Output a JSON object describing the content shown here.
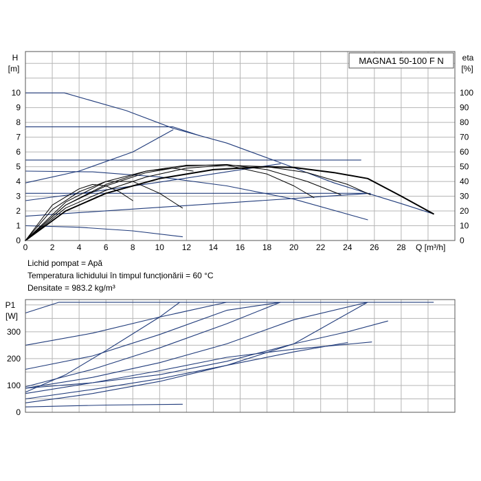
{
  "chart_data": [
    {
      "type": "line",
      "title": "MAGNA1 50-100 F N",
      "xlabel": "Q [m³/h]",
      "ylabel_left": [
        "H",
        "[m]"
      ],
      "ylabel_right": [
        "eta",
        "[%]"
      ],
      "xlim": [
        0,
        32
      ],
      "ylim": [
        0,
        12.8
      ],
      "y2lim": [
        0,
        128
      ],
      "xticks": [
        "0",
        "2",
        "4",
        "6",
        "8",
        "10",
        "12",
        "14",
        "16",
        "18",
        "20",
        "22",
        "24",
        "26",
        "28"
      ],
      "yticks": [
        "0",
        "1",
        "2",
        "3",
        "4",
        "5",
        "6",
        "7",
        "8",
        "9",
        "10"
      ],
      "y2ticks": [
        "0",
        "10",
        "20",
        "30",
        "40",
        "50",
        "60",
        "70",
        "80",
        "90",
        "100"
      ],
      "grid": true,
      "colors": {
        "pump": "#1f3a7a",
        "efficiency": "#000000",
        "grid": "#b5b5b5"
      },
      "series": [
        {
          "role": "pump",
          "points": [
            [
              0,
              10
            ],
            [
              2.9,
              10
            ],
            [
              7.5,
              8.8
            ],
            [
              11,
              7.6
            ],
            [
              15,
              6.6
            ],
            [
              19.5,
              5.1
            ],
            [
              23,
              3.9
            ],
            [
              25.5,
              3.2
            ],
            [
              28,
              2.5
            ],
            [
              30.4,
              1.8
            ]
          ]
        },
        {
          "role": "pump",
          "points": [
            [
              0,
              7.7
            ],
            [
              11,
              7.7
            ],
            [
              13,
              7.1
            ]
          ]
        },
        {
          "role": "pump",
          "points": [
            [
              0,
              5.45
            ],
            [
              25,
              5.45
            ]
          ]
        },
        {
          "role": "pump",
          "points": [
            [
              0,
              3.9
            ],
            [
              4,
              4.7
            ],
            [
              8,
              6.0
            ],
            [
              11,
              7.5
            ]
          ]
        },
        {
          "role": "pump",
          "points": [
            [
              0,
              4.7
            ],
            [
              5,
              4.65
            ],
            [
              10,
              4.3
            ],
            [
              15,
              3.7
            ],
            [
              20,
              2.8
            ],
            [
              25.5,
              1.4
            ]
          ]
        },
        {
          "role": "pump",
          "points": [
            [
              0,
              3.2
            ],
            [
              25.5,
              3.2
            ]
          ]
        },
        {
          "role": "pump",
          "points": [
            [
              0,
              2.7
            ],
            [
              5,
              3.3
            ],
            [
              10,
              3.95
            ],
            [
              15,
              4.65
            ],
            [
              19,
              5.2
            ]
          ]
        },
        {
          "role": "pump",
          "points": [
            [
              0,
              1.65
            ],
            [
              10,
              2.25
            ],
            [
              20,
              2.85
            ],
            [
              25.7,
              3.2
            ]
          ]
        },
        {
          "role": "pump",
          "points": [
            [
              0,
              1.0
            ],
            [
              4,
              0.9
            ],
            [
              8,
              0.65
            ],
            [
              11.7,
              0.25
            ]
          ]
        },
        {
          "role": "efficiency",
          "points": [
            [
              0,
              0
            ],
            [
              3,
              20
            ],
            [
              6,
              32
            ],
            [
              10,
              42
            ],
            [
              14,
              48
            ],
            [
              18,
              50
            ],
            [
              20,
              49.5
            ],
            [
              23,
              46
            ],
            [
              25.5,
              42
            ],
            [
              28,
              30
            ],
            [
              30.4,
              18
            ]
          ],
          "sw": 2
        },
        {
          "role": "efficiency",
          "points": [
            [
              0,
              0
            ],
            [
              3,
              22
            ],
            [
              6,
              34
            ],
            [
              9,
              43
            ],
            [
              12,
              49
            ],
            [
              15,
              51
            ],
            [
              18,
              50
            ],
            [
              21,
              46
            ],
            [
              24,
              38
            ],
            [
              25.7,
              31
            ]
          ],
          "sw": 1
        },
        {
          "role": "efficiency",
          "points": [
            [
              0,
              0
            ],
            [
              3,
              24
            ],
            [
              6,
              37
            ],
            [
              9,
              46
            ],
            [
              12,
              50.5
            ],
            [
              15,
              51.5
            ],
            [
              18,
              48
            ],
            [
              21,
              40
            ],
            [
              23.5,
              31
            ]
          ],
          "sw": 1
        },
        {
          "role": "efficiency",
          "points": [
            [
              0,
              0
            ],
            [
              3,
              24
            ],
            [
              6,
              38
            ],
            [
              9,
              47
            ],
            [
              12,
              51
            ],
            [
              15,
              51
            ],
            [
              18,
              45
            ],
            [
              20,
              37
            ],
            [
              21.5,
              29
            ]
          ],
          "sw": 1
        },
        {
          "role": "efficiency",
          "points": [
            [
              0,
              0
            ],
            [
              3,
              26
            ],
            [
              6,
              40
            ],
            [
              9,
              47
            ],
            [
              11,
              49
            ],
            [
              12.5,
              47
            ]
          ],
          "sw": 1
        },
        {
          "role": "efficiency",
          "points": [
            [
              0,
              0
            ],
            [
              2,
              21
            ],
            [
              4,
              33
            ],
            [
              6,
              40
            ],
            [
              8,
              40
            ],
            [
              10,
              32
            ],
            [
              11.7,
              22
            ]
          ],
          "sw": 1
        },
        {
          "role": "efficiency",
          "points": [
            [
              0,
              0
            ],
            [
              2,
              24
            ],
            [
              4,
              35
            ],
            [
              5,
              38
            ],
            [
              6,
              37
            ],
            [
              7,
              33
            ],
            [
              8,
              27
            ]
          ],
          "sw": 1
        }
      ],
      "notes": [
        "Lichid pompat = Apă",
        "Temperatura lichidului în timpul funcționării = 60 °C",
        "Densitate = 983.2 kg/m³"
      ]
    },
    {
      "type": "line",
      "xlim": [
        0,
        32
      ],
      "ylim": [
        0,
        420
      ],
      "ylabel_left": [
        "P1",
        "[W]"
      ],
      "yticks": [
        "0",
        "100",
        "200",
        "300"
      ],
      "grid": true,
      "series": [
        {
          "role": "pump",
          "points": [
            [
              0,
              370
            ],
            [
              2.5,
              410
            ],
            [
              30.4,
              410
            ]
          ]
        },
        {
          "role": "pump",
          "points": [
            [
              0,
              250
            ],
            [
              5,
              295
            ],
            [
              10,
              355
            ],
            [
              15,
              410
            ]
          ]
        },
        {
          "role": "pump",
          "points": [
            [
              0,
              160
            ],
            [
              5,
              210
            ],
            [
              10,
              290
            ],
            [
              15,
              380
            ],
            [
              19,
              410
            ]
          ]
        },
        {
          "role": "pump",
          "points": [
            [
              0,
              90
            ],
            [
              5,
              130
            ],
            [
              10,
              185
            ],
            [
              15,
              255
            ],
            [
              20,
              345
            ],
            [
              25.5,
              410
            ]
          ]
        },
        {
          "role": "pump",
          "points": [
            [
              0,
              35
            ],
            [
              5,
              70
            ],
            [
              10,
              115
            ],
            [
              15,
              175
            ],
            [
              20,
              255
            ],
            [
              25.5,
              410
            ]
          ]
        },
        {
          "role": "pump",
          "points": [
            [
              0,
              70
            ],
            [
              5,
              110
            ],
            [
              10,
              155
            ],
            [
              15,
              205
            ],
            [
              20,
              235
            ],
            [
              25.8,
              262
            ]
          ]
        },
        {
          "role": "pump",
          "points": [
            [
              0,
              20
            ],
            [
              6,
              27
            ],
            [
              11.7,
              30
            ]
          ]
        },
        {
          "role": "pump",
          "points": [
            [
              0,
              75
            ],
            [
              3,
              140
            ],
            [
              6,
              230
            ],
            [
              10,
              355
            ],
            [
              11.5,
              410
            ]
          ]
        },
        {
          "role": "pump",
          "points": [
            [
              0,
              95
            ],
            [
              5,
              160
            ],
            [
              10,
              240
            ],
            [
              15,
              330
            ],
            [
              19,
              410
            ]
          ]
        },
        {
          "role": "pump",
          "points": [
            [
              0,
              50
            ],
            [
              5,
              85
            ],
            [
              10,
              125
            ],
            [
              15,
              175
            ],
            [
              20,
              225
            ],
            [
              24,
              260
            ]
          ]
        },
        {
          "role": "pump",
          "points": [
            [
              0,
              90
            ],
            [
              5,
              110
            ],
            [
              10,
              140
            ],
            [
              15,
              190
            ],
            [
              20,
              255
            ],
            [
              24,
              300
            ],
            [
              27,
              340
            ]
          ]
        }
      ]
    }
  ]
}
